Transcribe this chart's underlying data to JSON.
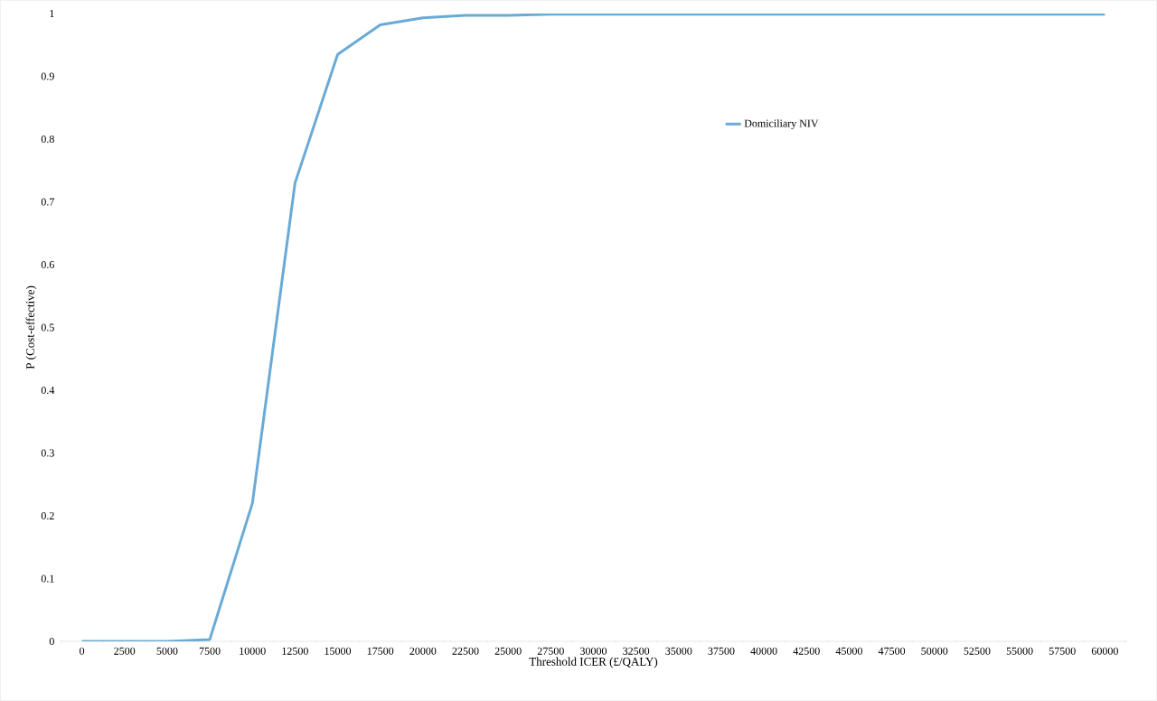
{
  "chart_data": {
    "type": "line",
    "xlabel": "Threshold ICER (£/QALY)",
    "ylabel": "P (Cost-effective)",
    "categories": [
      "0",
      "2500",
      "5000",
      "7500",
      "10000",
      "12500",
      "15000",
      "17500",
      "20000",
      "22500",
      "25000",
      "27500",
      "30000",
      "32500",
      "35000",
      "37500",
      "40000",
      "42500",
      "45000",
      "47500",
      "50000",
      "52500",
      "55000",
      "57500",
      "60000"
    ],
    "series": [
      {
        "name": "Domiciliary NIV",
        "color": "#6aaad6",
        "values": [
          0,
          0,
          0,
          0.003,
          0.22,
          0.73,
          0.935,
          0.982,
          0.993,
          0.997,
          0.997,
          0.999,
          0.999,
          0.999,
          0.999,
          0.999,
          0.999,
          0.999,
          0.999,
          0.999,
          0.999,
          0.999,
          0.999,
          0.999,
          0.999
        ]
      }
    ],
    "ylim": [
      0,
      1
    ],
    "yticks": [
      0,
      0.1,
      0.2,
      0.3,
      0.4,
      0.5,
      0.6,
      0.7,
      0.8,
      0.9,
      1
    ],
    "legend": "top right",
    "marker": "none",
    "line_style": "solid",
    "grid": false
  }
}
